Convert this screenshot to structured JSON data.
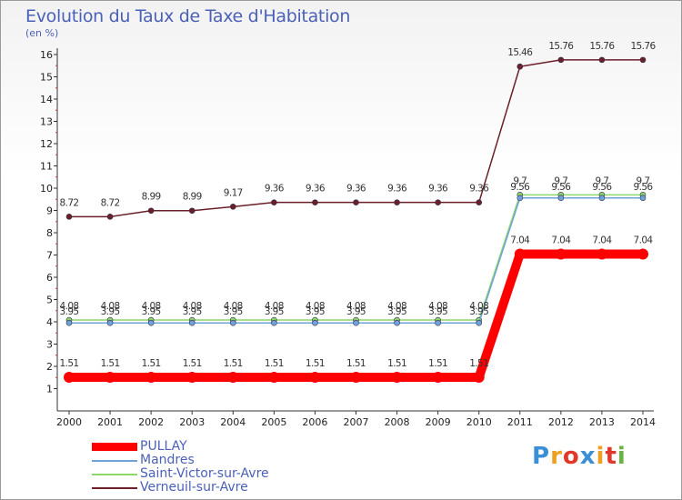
{
  "header": {
    "title": "Evolution du Taux de Taxe d'Habitation",
    "unit": "(en %)"
  },
  "logo": {
    "text": "Proxiti",
    "colors": [
      "#3a8fd6",
      "#f0a020",
      "#e0392b",
      "#3a8fd6",
      "#f0a020",
      "#e0392b",
      "#6ab23e"
    ]
  },
  "chart_data": {
    "type": "line",
    "title": "Evolution du Taux de Taxe d'Habitation",
    "ylabel": "(en %)",
    "xlabel": "",
    "ylim": [
      0,
      16
    ],
    "yticks": [
      1,
      2,
      3,
      4,
      5,
      6,
      7,
      8,
      9,
      10,
      11,
      12,
      13,
      14,
      15,
      16
    ],
    "grid": false,
    "legend_position": "bottom-left",
    "categories": [
      "2000",
      "2001",
      "2002",
      "2003",
      "2004",
      "2005",
      "2006",
      "2007",
      "2008",
      "2009",
      "2010",
      "2011",
      "2012",
      "2013",
      "2014"
    ],
    "series": [
      {
        "name": "PULLAY",
        "color": "#ff0000",
        "values": [
          1.51,
          1.51,
          1.51,
          1.51,
          1.51,
          1.51,
          1.51,
          1.51,
          1.51,
          1.51,
          1.51,
          7.04,
          7.04,
          7.04,
          7.04
        ],
        "labels": [
          "1.51",
          "1.51",
          "1.51",
          "1.51",
          "1.51",
          "1.51",
          "1.51",
          "1.51",
          "1.51",
          "1.51",
          "1.51",
          "7.04",
          "7.04",
          "7.04",
          "7.04"
        ]
      },
      {
        "name": "Mandres",
        "color": "#6fa3d8",
        "values": [
          3.95,
          3.95,
          3.95,
          3.95,
          3.95,
          3.95,
          3.95,
          3.95,
          3.95,
          3.95,
          3.95,
          9.56,
          9.56,
          9.56,
          9.56
        ],
        "labels": [
          "3.95",
          "3.95",
          "3.95",
          "3.95",
          "3.95",
          "3.95",
          "3.95",
          "3.95",
          "3.95",
          "3.95",
          "3.95",
          "9.56",
          "9.56",
          "9.56",
          "9.56"
        ]
      },
      {
        "name": "Saint-Victor-sur-Avre",
        "color": "#8ed66a",
        "values": [
          4.08,
          4.08,
          4.08,
          4.08,
          4.08,
          4.08,
          4.08,
          4.08,
          4.08,
          4.08,
          4.08,
          9.7,
          9.7,
          9.7,
          9.7
        ],
        "labels": [
          "4.08",
          "4.08",
          "4.08",
          "4.08",
          "4.08",
          "4.08",
          "4.08",
          "4.08",
          "4.08",
          "4.08",
          "4.08",
          "9.7",
          "9.7",
          "9.7",
          "9.7"
        ]
      },
      {
        "name": "Verneuil-sur-Avre",
        "color": "#6b1f28",
        "values": [
          8.72,
          8.72,
          8.99,
          8.99,
          9.17,
          9.36,
          9.36,
          9.36,
          9.36,
          9.36,
          9.36,
          15.46,
          15.76,
          15.76,
          15.76
        ],
        "labels": [
          "8.72",
          "8.72",
          "8.99",
          "8.99",
          "9.17",
          "9.36",
          "9.36",
          "9.36",
          "9.36",
          "9.36",
          "9.36",
          "15.46",
          "15.76",
          "15.76",
          "15.76"
        ]
      }
    ]
  }
}
